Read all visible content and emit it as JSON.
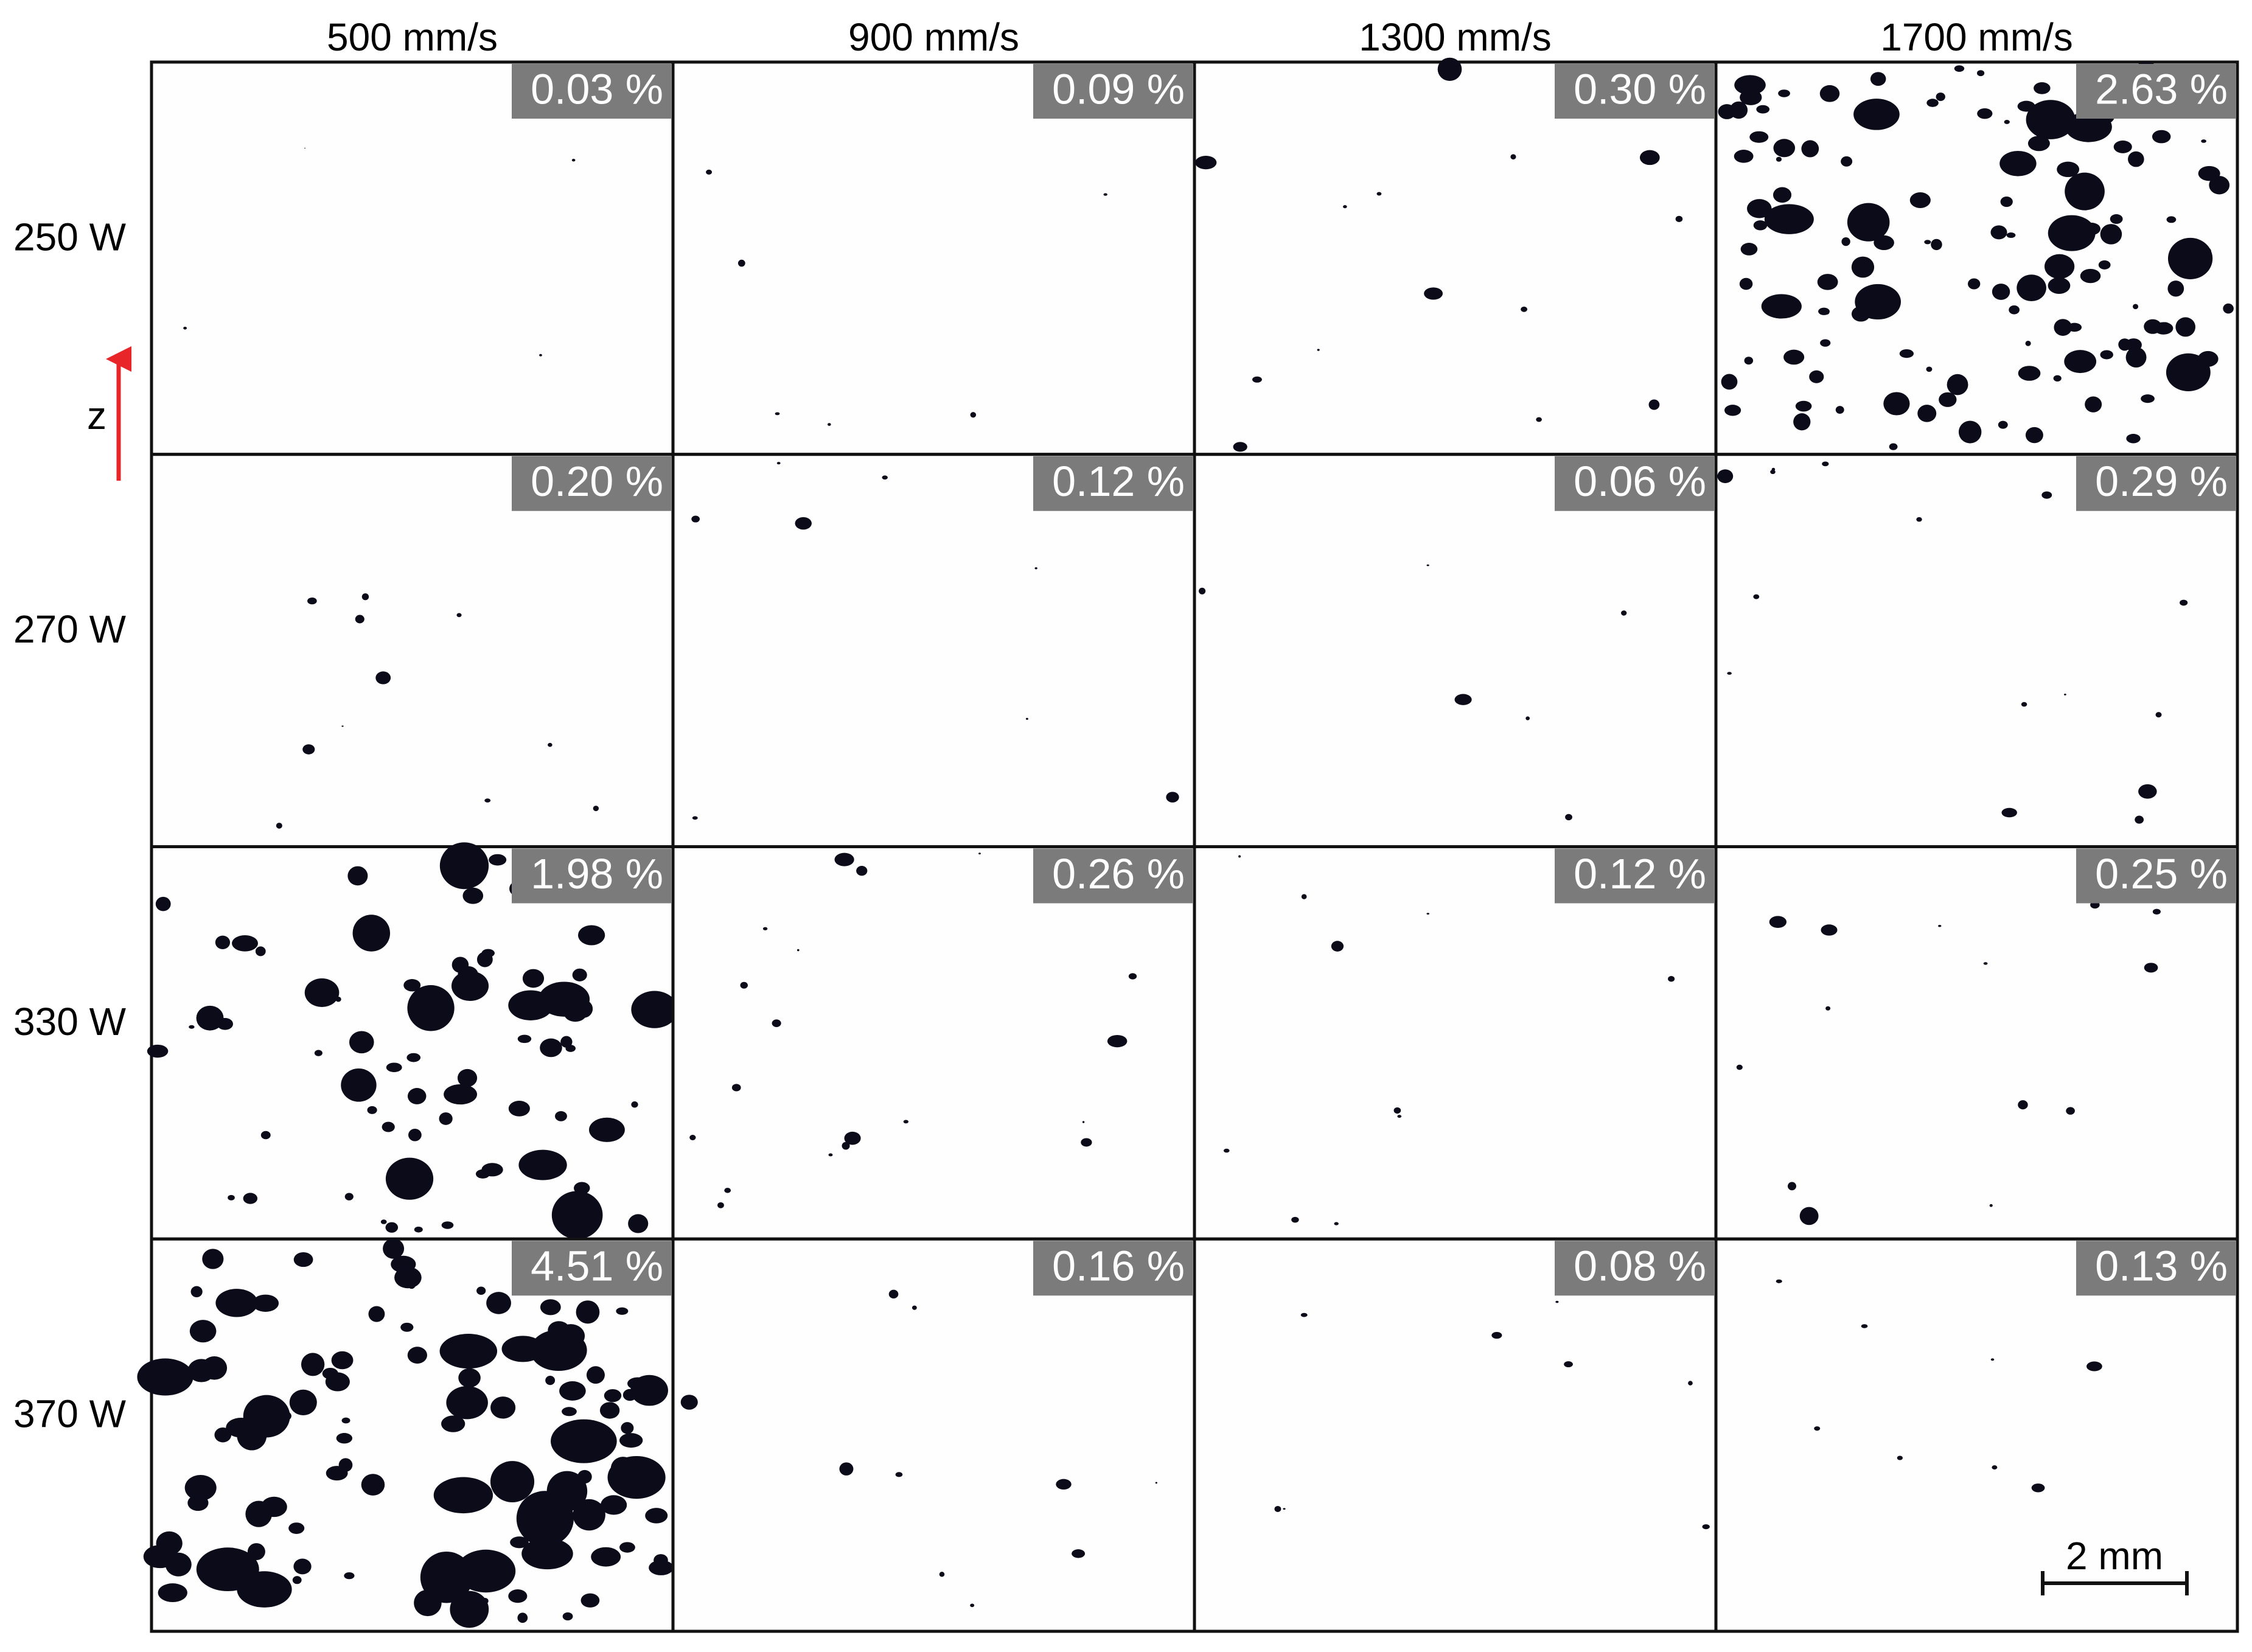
{
  "columns": [
    "500 mm/s",
    "900 mm/s",
    "1300 mm/s",
    "1700 mm/s"
  ],
  "rows": [
    "250 W",
    "270 W",
    "330 W",
    "370 W"
  ],
  "porosity": [
    [
      "0.03 %",
      "0.09 %",
      "0.30 %",
      "2.63 %"
    ],
    [
      "0.20 %",
      "0.12 %",
      "0.06 %",
      "0.29 %"
    ],
    [
      "1.98 %",
      "0.26 %",
      "0.12 %",
      "0.25 %"
    ],
    [
      "4.51 %",
      "0.16 %",
      "0.08 %",
      "0.13 %"
    ]
  ],
  "axis_label": "z",
  "scale_bar": "2 mm"
}
